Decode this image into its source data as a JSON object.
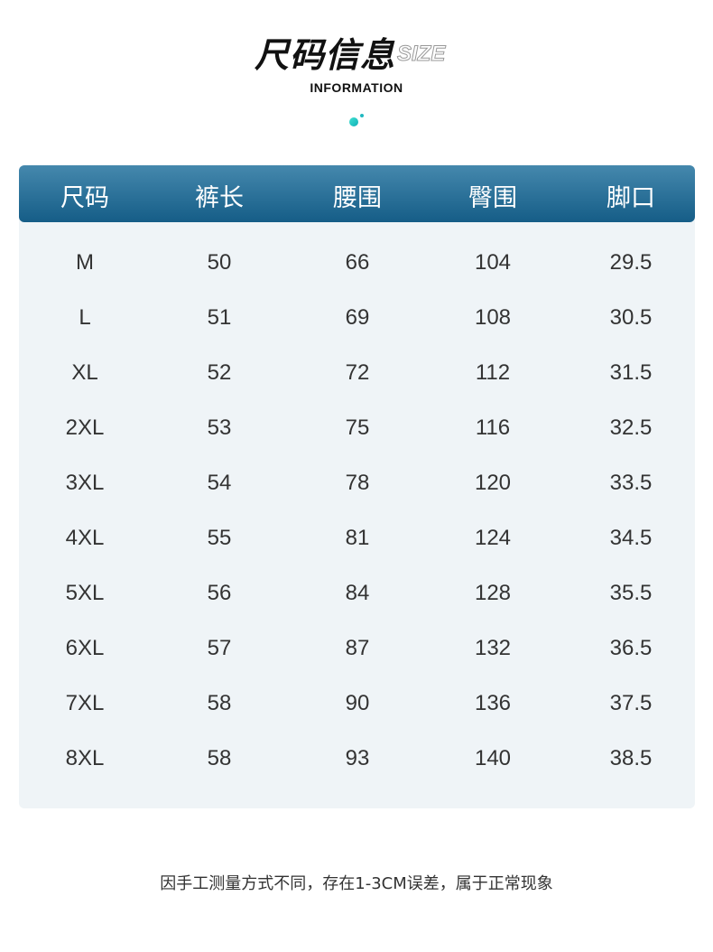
{
  "header": {
    "title": "尺码信息",
    "title_en": "SIZE",
    "subtitle": "INFORMATION"
  },
  "table": {
    "columns": [
      "尺码",
      "裤长",
      "腰围",
      "臀围",
      "脚口"
    ],
    "rows": [
      [
        "M",
        "50",
        "66",
        "104",
        "29.5"
      ],
      [
        "L",
        "51",
        "69",
        "108",
        "30.5"
      ],
      [
        "XL",
        "52",
        "72",
        "112",
        "31.5"
      ],
      [
        "2XL",
        "53",
        "75",
        "116",
        "32.5"
      ],
      [
        "3XL",
        "54",
        "78",
        "120",
        "33.5"
      ],
      [
        "4XL",
        "55",
        "81",
        "124",
        "34.5"
      ],
      [
        "5XL",
        "56",
        "84",
        "128",
        "35.5"
      ],
      [
        "6XL",
        "57",
        "87",
        "132",
        "36.5"
      ],
      [
        "7XL",
        "58",
        "90",
        "136",
        "37.5"
      ],
      [
        "8XL",
        "58",
        "93",
        "140",
        "38.5"
      ]
    ]
  },
  "footer": {
    "note": "因手工测量方式不同，存在1-3CM误差，属于正常现象"
  },
  "colors": {
    "header_top": "#4588ad",
    "header_bottom": "#155d87",
    "body_bg": "#eff4f7",
    "accent_dot": "#20c0c0"
  }
}
